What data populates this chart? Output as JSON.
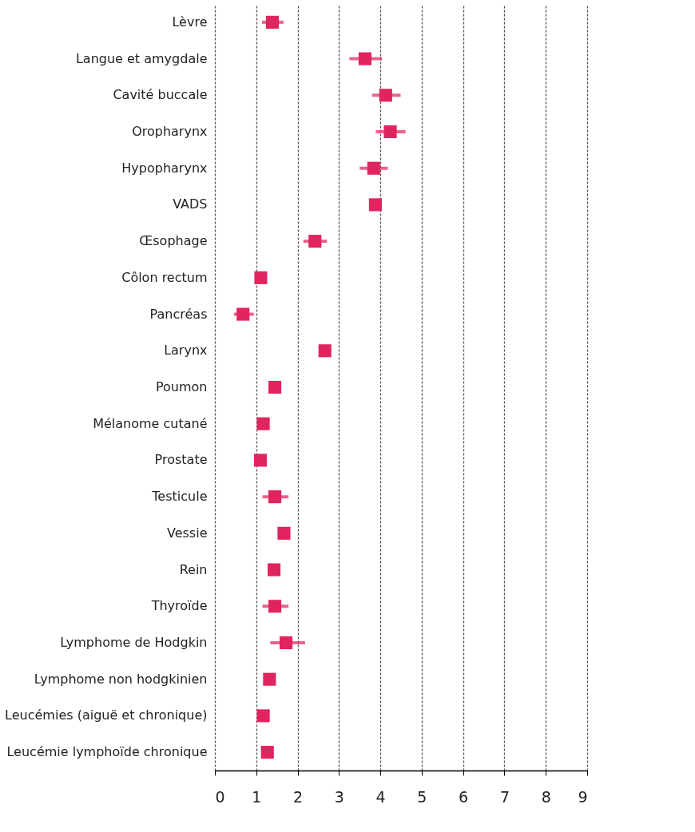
{
  "chart_data": {
    "type": "scatter",
    "orientation": "horizontal",
    "categories": [
      "Lèvre",
      "Langue et amygdale",
      "Cavité buccale",
      "Oropharynx",
      "Hypopharynx",
      "VADS",
      "Œsophage",
      "Côlon rectum",
      "Pancréas",
      "Larynx",
      "Poumon",
      "Mélanome cutané",
      "Prostate",
      "Testicule",
      "Vessie",
      "Rein",
      "Thyroïde",
      "Lymphome de Hodgkin",
      "Lymphome non hodgkinien",
      "Leucémies (aiguë et chronique)",
      "Leucémie lymphoïde chronique"
    ],
    "values": [
      1.39,
      3.63,
      4.13,
      4.24,
      3.84,
      3.88,
      2.42,
      1.11,
      0.68,
      2.66,
      1.45,
      1.17,
      1.1,
      1.45,
      1.67,
      1.43,
      1.45,
      1.72,
      1.32,
      1.17,
      1.27
    ],
    "errors": [
      [
        1.14,
        1.66
      ],
      [
        3.25,
        4.04
      ],
      [
        3.8,
        4.49
      ],
      [
        3.89,
        4.61
      ],
      [
        3.5,
        4.18
      ],
      null,
      [
        2.14,
        2.71
      ],
      null,
      [
        0.46,
        0.94
      ],
      null,
      null,
      null,
      null,
      [
        1.15,
        1.78
      ],
      null,
      null,
      [
        1.15,
        1.78
      ],
      [
        1.34,
        2.18
      ],
      null,
      null,
      null
    ],
    "color": "#e0245e",
    "marker": "square",
    "xlim": [
      0,
      9
    ],
    "xticks": [
      0,
      1,
      2,
      3,
      4,
      5,
      6,
      7,
      8,
      9
    ],
    "grid": "x"
  }
}
